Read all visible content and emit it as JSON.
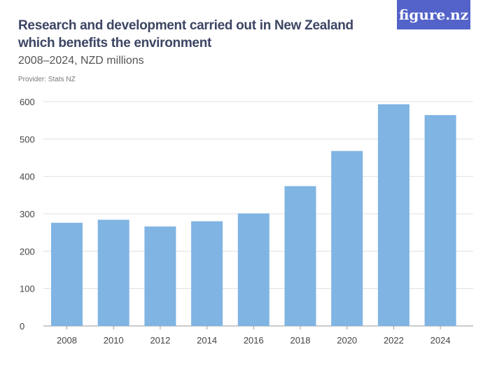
{
  "title": "Research and development carried out in New Zealand which benefits the environment",
  "subtitle": "2008–2024, NZD millions",
  "provider": "Provider: Stats NZ",
  "logo": "figure.nz",
  "colors": {
    "bar": "#7fb4e3",
    "logo_bg": "#5463c9",
    "title": "#3c4563"
  },
  "chart_data": {
    "type": "bar",
    "categories": [
      "2008",
      "2010",
      "2012",
      "2014",
      "2016",
      "2018",
      "2020",
      "2022",
      "2024"
    ],
    "values": [
      276,
      284,
      266,
      280,
      301,
      374,
      468,
      593,
      564
    ],
    "ylim": [
      0,
      600
    ],
    "yticks": [
      0,
      100,
      200,
      300,
      400,
      500,
      600
    ],
    "grid": true,
    "xlabel": "",
    "ylabel": ""
  }
}
